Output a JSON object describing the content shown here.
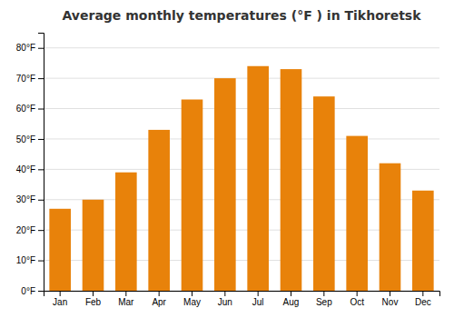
{
  "chart_data": {
    "type": "bar",
    "title": "Average monthly temperatures (°F ) in Tikhoretsk",
    "categories": [
      "Jan",
      "Feb",
      "Mar",
      "Apr",
      "May",
      "Jun",
      "Jul",
      "Aug",
      "Sep",
      "Oct",
      "Nov",
      "Dec"
    ],
    "values": [
      27,
      30,
      39,
      53,
      63,
      70,
      74,
      73,
      64,
      51,
      42,
      33
    ],
    "color": "#E8820A",
    "ylim": [
      0,
      85
    ],
    "yticks": [
      {
        "value": 0,
        "label": "0°F"
      },
      {
        "value": 10,
        "label": "10°F"
      },
      {
        "value": 20,
        "label": "20°F"
      },
      {
        "value": 30,
        "label": "30°F"
      },
      {
        "value": 40,
        "label": "40°F"
      },
      {
        "value": 50,
        "label": "50°F"
      },
      {
        "value": 60,
        "label": "60°F"
      },
      {
        "value": 70,
        "label": "70°F"
      },
      {
        "value": 80,
        "label": "80°F"
      }
    ],
    "grid": true
  }
}
